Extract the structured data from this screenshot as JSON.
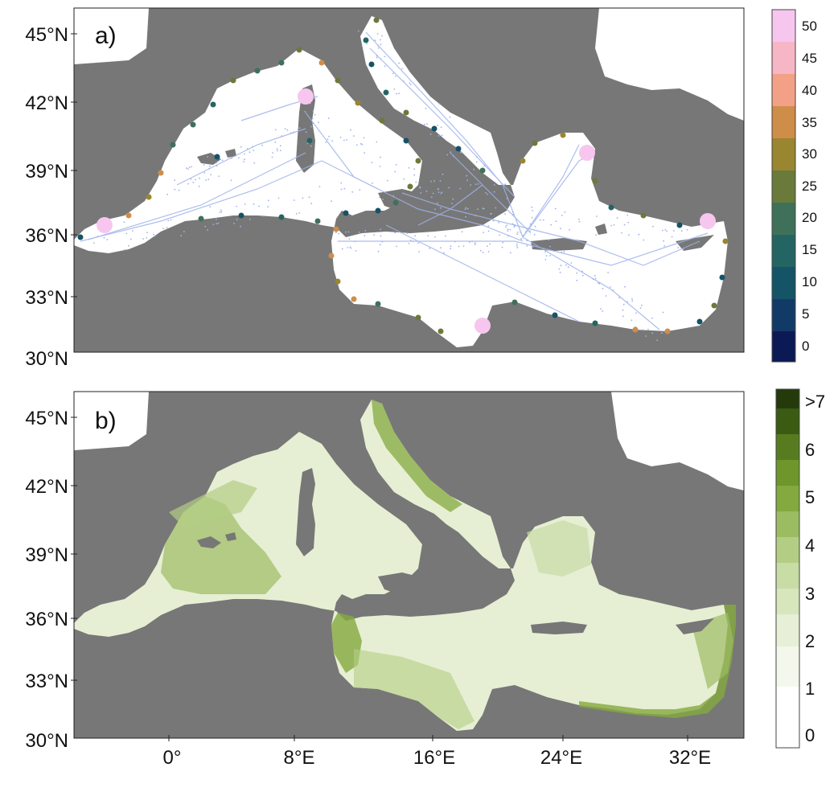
{
  "panels": {
    "a": {
      "label": "a)",
      "colorbar": {
        "ticks": [
          "0",
          "5",
          "10",
          "15",
          "20",
          "25",
          "30",
          "35",
          "40",
          "45",
          "50"
        ],
        "colors": [
          "#0b1a55",
          "#123a66",
          "#155366",
          "#246563",
          "#3f715a",
          "#6a7a3b",
          "#9a8530",
          "#cf8d4a",
          "#f3a186",
          "#f7b6c6",
          "#f7c6ef"
        ]
      }
    },
    "b": {
      "label": "b)",
      "colorbar": {
        "ticks": [
          "0",
          "1",
          "2",
          "3",
          "4",
          "5",
          "6",
          ">7"
        ],
        "colors": [
          "#ffffff",
          "#f4f7ec",
          "#e7efd6",
          "#d8e6bd",
          "#c8dca6",
          "#b3cd84",
          "#9cbc62",
          "#84a93f",
          "#6e962a",
          "#567c1f",
          "#3b5a12",
          "#243a0b"
        ]
      }
    }
  },
  "axes": {
    "lat_ticks": [
      "45°N",
      "42°N",
      "39°N",
      "36°N",
      "33°N",
      "30°N"
    ],
    "lon_ticks": [
      "0°",
      "8°E",
      "16°E",
      "24°E",
      "32°E"
    ]
  },
  "colors": {
    "land": "#777777",
    "sea": "#ffffff",
    "tracks": "#9fb2ea",
    "panel_b_high": "#6e962a",
    "panel_b_low": "#e6efd3"
  }
}
